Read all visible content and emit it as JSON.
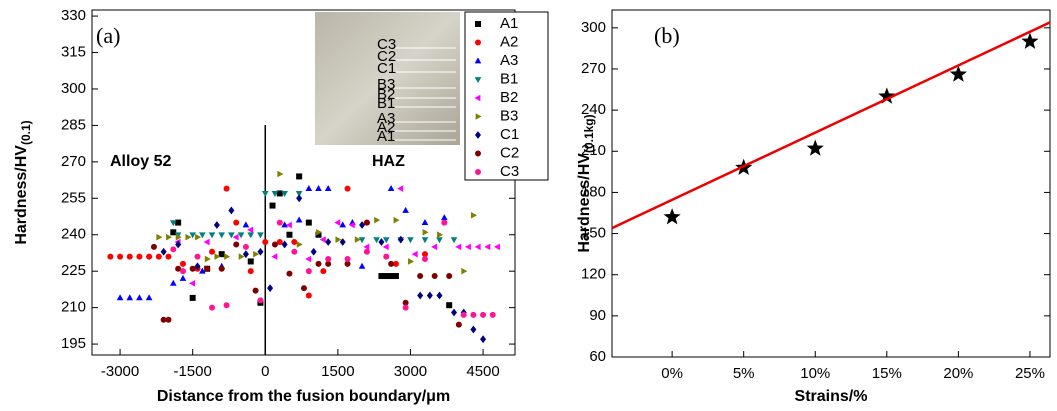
{
  "chart_data": [
    {
      "type": "scatter",
      "label": "(a)",
      "x_label": "Distance from the fusion boundary/μm",
      "y_label": "Hardness/HV",
      "y_label_sub": "(0.1)",
      "xlim": [
        -3580,
        5160
      ],
      "ylim": [
        190.5,
        332.5
      ],
      "xticks": [
        -3000,
        -1500,
        0,
        1500,
        3000,
        4500
      ],
      "yticks": [
        195,
        210,
        225,
        240,
        255,
        270,
        285,
        300,
        315,
        330
      ],
      "annotations": [
        "Alloy 52",
        "HAZ"
      ],
      "inset_labels": [
        "C3",
        "C2",
        "C1",
        "B3",
        "B2",
        "B1",
        "A3",
        "A2",
        "A1"
      ],
      "legend": "upper right",
      "series": [
        {
          "name": "A1",
          "color": "#000000",
          "marker": "square",
          "x": [
            -1900,
            -1800,
            -1500,
            -1200,
            -900,
            -300,
            -100,
            150,
            300,
            500,
            700,
            900,
            1100,
            2400,
            2500,
            2600,
            2700,
            3800
          ],
          "y": [
            241,
            245,
            214,
            226,
            232,
            229,
            212,
            252,
            257,
            240,
            264,
            245,
            240,
            223,
            223,
            223,
            223,
            211
          ]
        },
        {
          "name": "A2",
          "color": "#ff0000",
          "marker": "circle",
          "x": [
            -3200,
            -3000,
            -2800,
            -2600,
            -2400,
            -2200,
            -2000,
            -1700,
            -1400,
            -1100,
            -800,
            -600,
            -300,
            0,
            300,
            600,
            900,
            1200,
            1700,
            2100,
            2700,
            3300
          ],
          "y": [
            231,
            231,
            231,
            231,
            231,
            231,
            231,
            228,
            226,
            233,
            259,
            245,
            225,
            237,
            237,
            237,
            215,
            225,
            259,
            245,
            228,
            232
          ]
        },
        {
          "name": "A3",
          "color": "#0000ff",
          "marker": "tri-up",
          "x": [
            -3000,
            -2800,
            -2600,
            -2400,
            -1900,
            -1700,
            -1300,
            -900,
            -400,
            400,
            700,
            900,
            1100,
            1300,
            1600,
            1800,
            2000,
            2600,
            2900,
            3300,
            3700
          ],
          "y": [
            214,
            214,
            214,
            214,
            220,
            222,
            225,
            227,
            244,
            244,
            246,
            259,
            259,
            259,
            244,
            245,
            227,
            259,
            250,
            245,
            247
          ]
        },
        {
          "name": "B1",
          "color": "#008080",
          "marker": "tri-down",
          "x": [
            -1900,
            -1800,
            -1500,
            -1300,
            -1100,
            -900,
            -700,
            -500,
            -300,
            -100,
            0,
            200,
            400,
            700,
            2000,
            2300,
            2500,
            2800,
            3000,
            3300,
            3600,
            3900
          ],
          "y": [
            245,
            240,
            240,
            240,
            240,
            240,
            240,
            240,
            240,
            240,
            257,
            257,
            257,
            257,
            238,
            238,
            238,
            238,
            238,
            238,
            238,
            238
          ]
        },
        {
          "name": "B2",
          "color": "#ff00ff",
          "marker": "tri-left",
          "x": [
            -1800,
            -1500,
            -1200,
            -600,
            -300,
            200,
            500,
            900,
            1200,
            1500,
            1800,
            2100,
            2500,
            2800,
            3100,
            3500,
            4000,
            4200,
            4400,
            4600,
            4800
          ],
          "y": [
            237,
            220,
            237,
            239,
            242,
            231,
            244,
            230,
            238,
            245,
            244,
            235,
            235,
            259,
            232,
            235,
            235,
            235,
            235,
            235,
            235
          ]
        },
        {
          "name": "B3",
          "color": "#808000",
          "marker": "tri-right",
          "x": [
            -2200,
            -2000,
            -1800,
            -1600,
            -1400,
            -1200,
            -1000,
            -800,
            -500,
            -200,
            300,
            700,
            1100,
            1500,
            1900,
            2300,
            2700,
            3000,
            3300,
            3600,
            4100,
            4300
          ],
          "y": [
            239,
            239,
            239,
            239,
            239,
            230,
            231,
            231,
            231,
            232,
            265,
            236,
            241,
            238,
            238,
            246,
            246,
            229,
            241,
            240,
            225,
            248
          ]
        },
        {
          "name": "C1",
          "color": "#000080",
          "marker": "diamond",
          "x": [
            -2100,
            -1800,
            -1400,
            -1000,
            -700,
            -400,
            -100,
            100,
            400,
            700,
            1000,
            1300,
            1600,
            2000,
            2400,
            2800,
            3200,
            3400,
            3600,
            3900,
            4100,
            4300,
            4500
          ],
          "y": [
            233,
            236,
            227,
            244,
            250,
            232,
            233,
            218,
            236,
            255,
            233,
            237,
            237,
            244,
            237,
            238,
            215,
            215,
            215,
            208,
            208,
            201,
            197
          ]
        },
        {
          "name": "C2",
          "color": "#800000",
          "marker": "circle",
          "x": [
            -2300,
            -2100,
            -2000,
            -1800,
            -1500,
            -1200,
            -900,
            -600,
            -200,
            200,
            500,
            800,
            1100,
            1300,
            1700,
            2100,
            2600,
            2900,
            3200,
            3500,
            3800,
            4000
          ],
          "y": [
            235,
            205,
            205,
            226,
            226,
            226,
            226,
            236,
            217,
            236,
            224,
            218,
            228,
            228,
            228,
            245,
            228,
            212,
            223,
            223,
            223,
            203
          ]
        },
        {
          "name": "C3",
          "color": "#ff1493",
          "marker": "circle",
          "x": [
            -1900,
            -1700,
            -1400,
            -1100,
            -800,
            -400,
            -100,
            300,
            600,
            900,
            1300,
            1700,
            2100,
            2500,
            2900,
            3300,
            3700,
            4100,
            4300,
            4500,
            4700
          ],
          "y": [
            234,
            225,
            231,
            210,
            211,
            235,
            213,
            245,
            233,
            225,
            230,
            230,
            233,
            231,
            210,
            230,
            245,
            207,
            207,
            207,
            207
          ]
        }
      ]
    },
    {
      "type": "scatter",
      "label": "(b)",
      "x_label": "Strains/%",
      "y_label": "Hardness/HV",
      "y_label_sub": "(0.1kg)",
      "xlim": [
        -4.2,
        26.4
      ],
      "ylim": [
        60,
        313
      ],
      "xticks": [
        {
          "value": 0,
          "label": "0%"
        },
        {
          "value": 5,
          "label": "5%"
        },
        {
          "value": 10,
          "label": "10%"
        },
        {
          "value": 15,
          "label": "15%"
        },
        {
          "value": 20,
          "label": "20%"
        },
        {
          "value": 25,
          "label": "25%"
        }
      ],
      "yticks": [
        60,
        90,
        120,
        150,
        180,
        210,
        240,
        270,
        300
      ],
      "series": [
        {
          "color": "#000000",
          "marker": "star",
          "x": [
            0,
            5,
            10,
            15,
            20,
            25
          ],
          "y": [
            162,
            198,
            212,
            250,
            266,
            290
          ]
        },
        {
          "color": "#ee0000",
          "marker": "line",
          "x": [
            -4.2,
            26.4
          ],
          "y": [
            154,
            304
          ]
        }
      ]
    }
  ]
}
